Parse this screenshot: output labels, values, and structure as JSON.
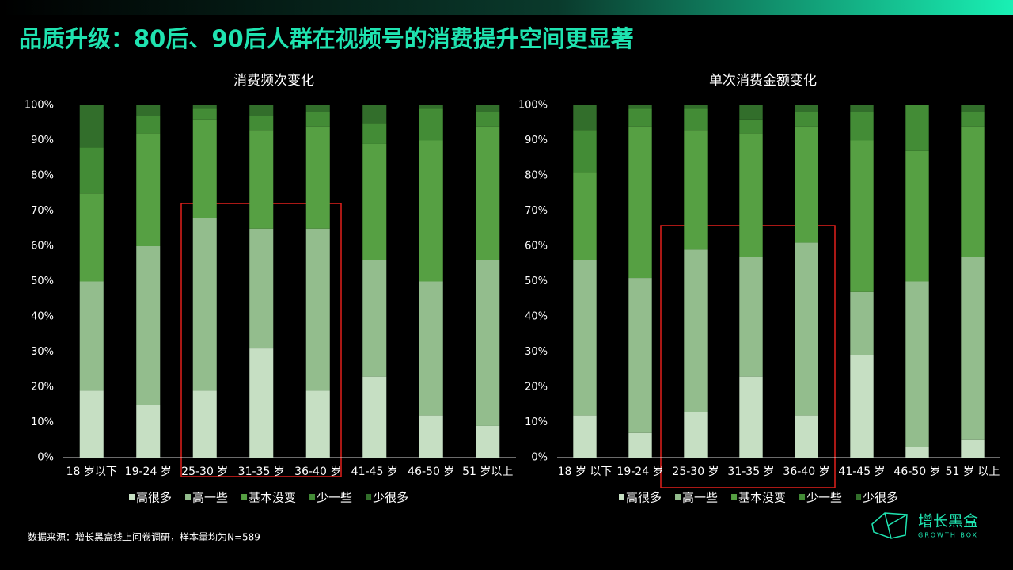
{
  "title": "品质升级：80后、90后人群在视频号的消费提升空间更显著",
  "source": "数据来源：增长黑盒线上问卷调研，样本量均为N=589",
  "logo": {
    "name": "增长黑盒",
    "tagline": "GROWTH BOX"
  },
  "chart_data": [
    {
      "type": "bar",
      "stacked": true,
      "title": "消费频次变化",
      "categories": [
        "18 岁以下",
        "19-24 岁",
        "25-30 岁",
        "31-35 岁",
        "36-40 岁",
        "41-45 岁",
        "46-50 岁",
        "51 岁以上"
      ],
      "series": [
        {
          "name": "高很多",
          "color": "#c6dfc3",
          "values": [
            19,
            15,
            19,
            31,
            19,
            23,
            12,
            9
          ]
        },
        {
          "name": "高一些",
          "color": "#93bd8d",
          "values": [
            31,
            45,
            49,
            34,
            46,
            33,
            38,
            47
          ]
        },
        {
          "name": "基本没变",
          "color": "#56a043",
          "values": [
            25,
            32,
            28,
            28,
            29,
            33,
            40,
            38
          ]
        },
        {
          "name": "少一些",
          "color": "#438c36",
          "values": [
            13,
            5,
            3,
            4,
            4,
            6,
            9,
            4
          ]
        },
        {
          "name": "少很多",
          "color": "#326e2b",
          "values": [
            12,
            3,
            1,
            3,
            2,
            5,
            1,
            2
          ]
        }
      ],
      "ylim": [
        0,
        100
      ],
      "yticks": [
        {
          "value": 0,
          "label": "0%"
        },
        {
          "value": 10,
          "label": "10%"
        },
        {
          "value": 20,
          "label": "20%"
        },
        {
          "value": 30,
          "label": "30%"
        },
        {
          "value": 40,
          "label": "40%"
        },
        {
          "value": 50,
          "label": "50%"
        },
        {
          "value": 60,
          "label": "60%"
        },
        {
          "value": 70,
          "label": "70%"
        },
        {
          "value": 80,
          "label": "80%"
        },
        {
          "value": 90,
          "label": "90%"
        },
        {
          "value": 100,
          "label": "100%"
        }
      ],
      "legend": "bottom",
      "grid": false
    },
    {
      "type": "bar",
      "stacked": true,
      "title": "单次消费金额变化",
      "categories": [
        "18 岁 以下",
        "19-24 岁",
        "25-30 岁",
        "31-35 岁",
        "36-40 岁",
        "41-45 岁",
        "46-50 岁",
        "51 岁 以上"
      ],
      "series": [
        {
          "name": "高很多",
          "color": "#c6dfc3",
          "values": [
            12,
            7,
            13,
            23,
            12,
            29,
            3,
            5
          ]
        },
        {
          "name": "高一些",
          "color": "#93bd8d",
          "values": [
            44,
            44,
            46,
            34,
            49,
            18,
            47,
            52
          ]
        },
        {
          "name": "基本没变",
          "color": "#56a043",
          "values": [
            25,
            43,
            34,
            35,
            33,
            43,
            37,
            37
          ]
        },
        {
          "name": "少一些",
          "color": "#438c36",
          "values": [
            12,
            5,
            6,
            4,
            4,
            8,
            13,
            4
          ]
        },
        {
          "name": "少很多",
          "color": "#326e2b",
          "values": [
            7,
            1,
            1,
            4,
            2,
            2,
            0,
            2
          ]
        }
      ],
      "ylim": [
        0,
        100
      ],
      "yticks": [
        {
          "value": 0,
          "label": "0%"
        },
        {
          "value": 10,
          "label": "10%"
        },
        {
          "value": 20,
          "label": "20%"
        },
        {
          "value": 30,
          "label": "30%"
        },
        {
          "value": 40,
          "label": "40%"
        },
        {
          "value": 50,
          "label": "50%"
        },
        {
          "value": 60,
          "label": "60%"
        },
        {
          "value": 70,
          "label": "70%"
        },
        {
          "value": 80,
          "label": "80%"
        },
        {
          "value": 90,
          "label": "90%"
        },
        {
          "value": 100,
          "label": "100%"
        }
      ],
      "legend": "bottom",
      "grid": false
    }
  ]
}
